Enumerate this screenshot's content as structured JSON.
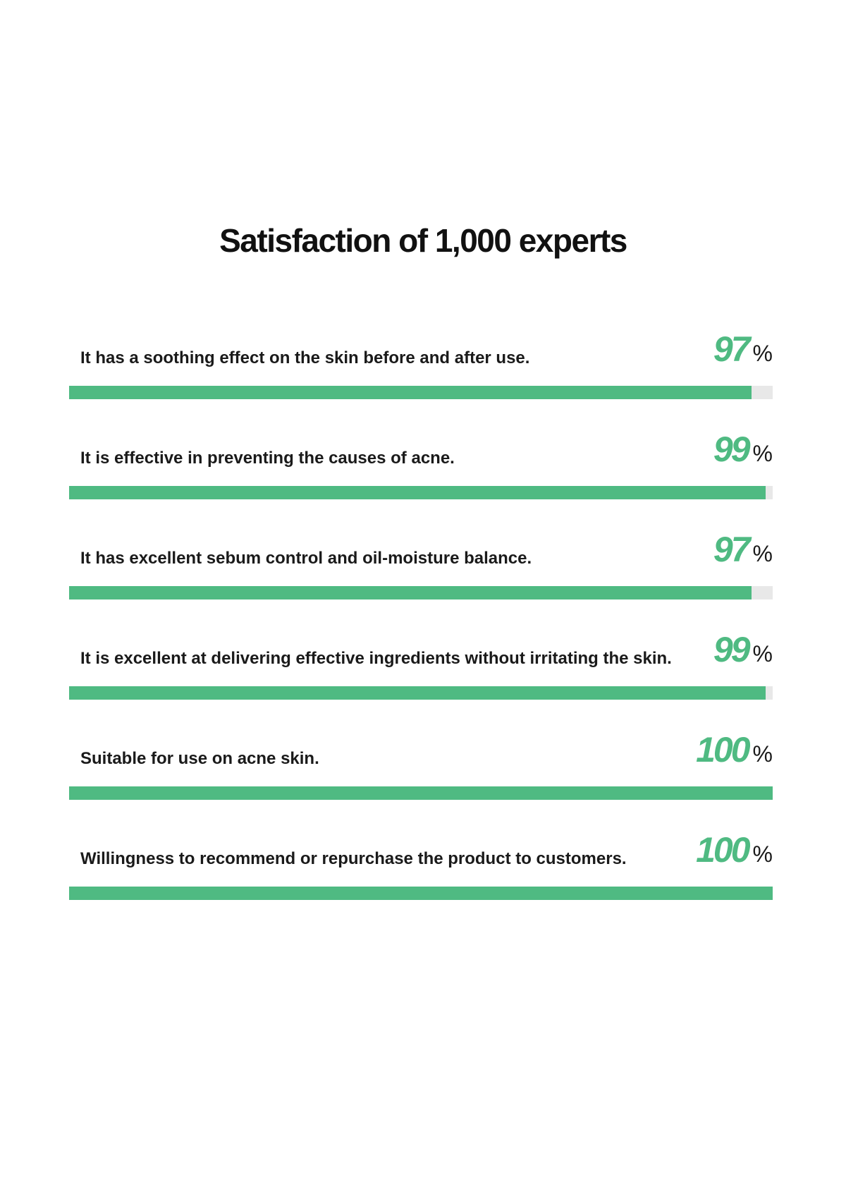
{
  "chart_data": {
    "type": "bar",
    "orientation": "horizontal",
    "title": "Satisfaction of 1,000 experts",
    "unit": "%",
    "xlim": [
      0,
      100
    ],
    "bar_color": "#4fba82",
    "track_color": "#e8e8e8",
    "items": [
      {
        "label": "It has a soothing effect on the skin before and after use.",
        "value": 97
      },
      {
        "label": "It is effective in preventing the causes of acne.",
        "value": 99
      },
      {
        "label": "It has excellent sebum control and oil-moisture balance.",
        "value": 97
      },
      {
        "label": "It is excellent at delivering effective ingredients without irritating the skin.",
        "value": 99
      },
      {
        "label": "Suitable for use on acne skin.",
        "value": 100
      },
      {
        "label": "Willingness to recommend or repurchase the product to customers.",
        "value": 100
      }
    ]
  }
}
